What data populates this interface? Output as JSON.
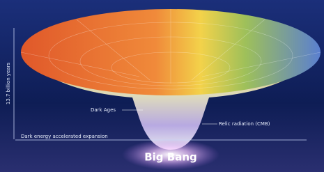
{
  "labels": {
    "vertical": "13.7 billion years",
    "dark_ages": "Dark Ages",
    "cmb": "Relic radiation (CMB)",
    "dark_energy": "Dark energy accelerated expansion",
    "bottom": "Big Bang"
  }
}
